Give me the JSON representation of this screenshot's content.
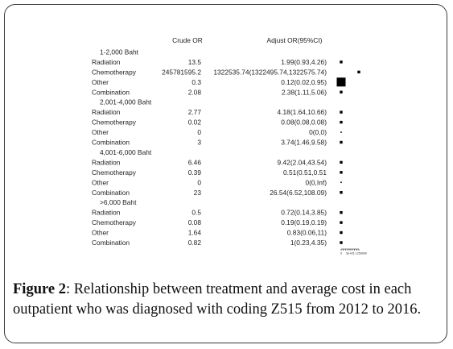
{
  "chart_data": {
    "type": "forest",
    "headers": {
      "crude": "Crude OR",
      "adjust": "Adjust OR(95%CI)"
    },
    "groups": [
      {
        "label": "1-2,000 Baht",
        "rows": [
          {
            "label": "Radiation",
            "crude": "13.5",
            "adjust": "1.99(0.93,4.26)",
            "or": 1.99
          },
          {
            "label": "Chemotherapy",
            "crude": "245781595.2",
            "adjust": "1322535.74(1322495.74,1322575.74)",
            "or": 1322535.74
          },
          {
            "label": "Other",
            "crude": "0.3",
            "adjust": "0.12(0.02,0.95)",
            "or": 0.12
          },
          {
            "label": "Combination",
            "crude": "2.08",
            "adjust": "2.38(1.11,5.06)",
            "or": 2.38
          }
        ]
      },
      {
        "label": "2,001-4,000 Baht",
        "rows": [
          {
            "label": "Radiation",
            "crude": "2.77",
            "adjust": "4.18(1.64,10.66)",
            "or": 4.18
          },
          {
            "label": "Chemotherapy",
            "crude": "0.02",
            "adjust": "0.08(0.08,0.08)",
            "or": 0.08
          },
          {
            "label": "Other",
            "crude": "0",
            "adjust": "0(0,0)",
            "or": 0
          },
          {
            "label": "Combination",
            "crude": "3",
            "adjust": "3.74(1.46,9.58)",
            "or": 3.74
          }
        ]
      },
      {
        "label": "4,001-6,000 Baht",
        "rows": [
          {
            "label": "Radiation",
            "crude": "6.46",
            "adjust": "9.42(2.04,43.54)",
            "or": 9.42
          },
          {
            "label": "Chemotherapy",
            "crude": "0.39",
            "adjust": "0.51(0.51,0.51",
            "or": 0.51
          },
          {
            "label": "Other",
            "crude": "0",
            "adjust": "0(0,Inf)",
            "or": 0
          },
          {
            "label": "Combination",
            "crude": "23",
            "adjust": "26.54(6.52,108.09)",
            "or": 26.54
          }
        ]
      },
      {
        "label": ">6,000 Baht",
        "rows": [
          {
            "label": "Radiation",
            "crude": "0.5",
            "adjust": "0.72(0.14,3.85)",
            "or": 0.72
          },
          {
            "label": "Chemotherapy",
            "crude": "0.08",
            "adjust": "0.19(0.19,0.19)",
            "or": 0.19
          },
          {
            "label": "Other",
            "crude": "1.64",
            "adjust": "0.83(0.06,11)",
            "or": 0.83
          },
          {
            "label": "Combination",
            "crude": "0.82",
            "adjust": "1(0.23,4.35)",
            "or": 1
          }
        ]
      }
    ],
    "x_axis": {
      "ticks": [
        "0",
        "5e+05",
        "1250000"
      ],
      "range": [
        0,
        1322575.74
      ]
    }
  },
  "caption": {
    "label": "Figure 2",
    "text": ": Relationship between treatment and average cost in each outpatient who was diagnosed with coding Z515 from 2012 to 2016."
  }
}
